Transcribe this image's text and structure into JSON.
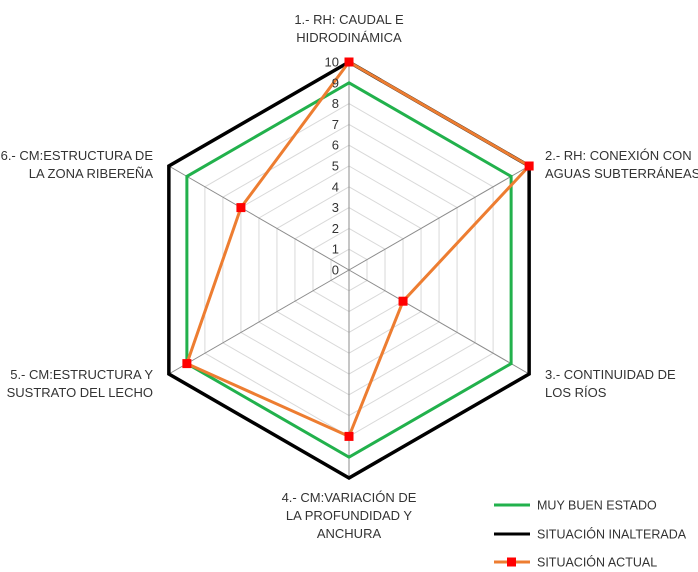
{
  "chart_data": {
    "type": "radar",
    "axes": [
      [
        "1.- RH: CAUDAL E",
        "HIDRODINÁMICA"
      ],
      [
        "2.- RH: CONEXIÓN CON",
        "AGUAS SUBTERRÁNEAS"
      ],
      [
        "3.- CONTINUIDAD DE",
        "LOS RÍOS"
      ],
      [
        "4.- CM:VARIACIÓN DE",
        "LA PROFUNDIDAD Y",
        "ANCHURA"
      ],
      [
        "5.- CM:ESTRUCTURA Y",
        "SUSTRATO DEL LECHO"
      ],
      [
        "6.- CM:ESTRUCTURA DE",
        "LA ZONA RIBEREÑA"
      ]
    ],
    "ticks": [
      "0",
      "1",
      "2",
      "3",
      "4",
      "5",
      "6",
      "7",
      "8",
      "9",
      "10"
    ],
    "range": [
      0,
      10
    ],
    "series": [
      {
        "name": "MUY BUEN ESTADO",
        "color": "#22b14c",
        "values": [
          9,
          9,
          9,
          9,
          9,
          9
        ],
        "marker": false
      },
      {
        "name": "SITUACIÓN INALTERADA",
        "color": "#000000",
        "values": [
          10,
          10,
          10,
          10,
          10,
          10
        ],
        "marker": false
      },
      {
        "name": "SITUACIÓN ACTUAL",
        "color": "#ed7d31",
        "marker_color": "#ff0000",
        "values": [
          10,
          10,
          3,
          8,
          9,
          6
        ],
        "marker": true
      }
    ],
    "legend_position": "bottom-right",
    "grid": true
  }
}
